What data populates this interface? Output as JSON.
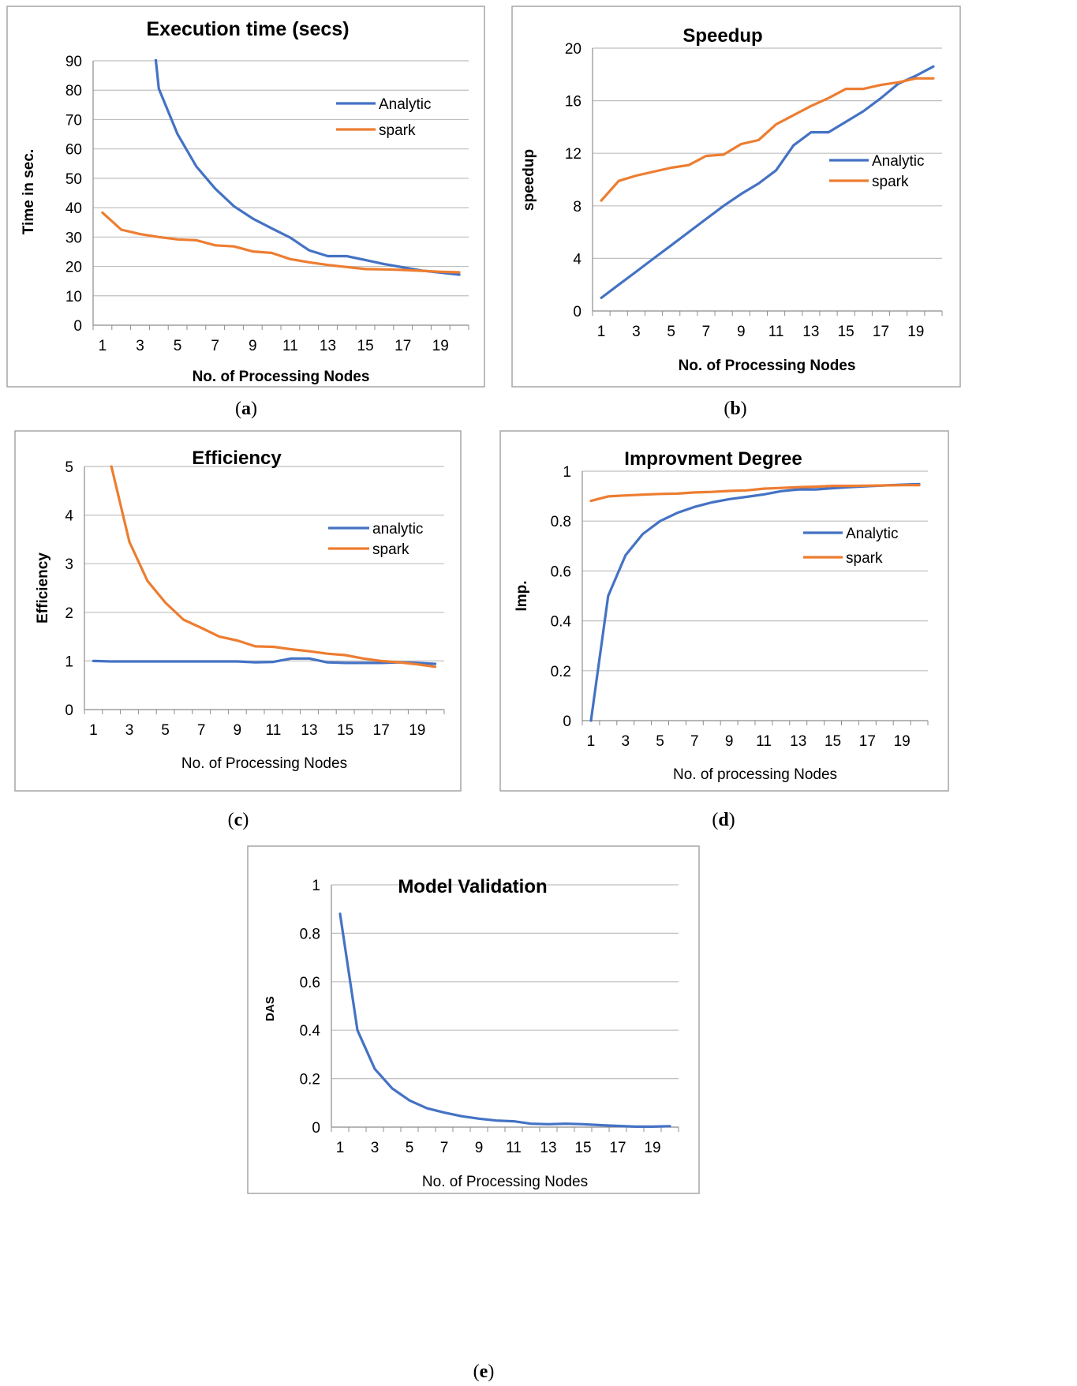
{
  "colors": {
    "analytic": "#4472C4",
    "spark": "#ED7D31",
    "grid": "#BFBFBF",
    "frame": "#A6A6A6"
  },
  "captions": [
    {
      "open": "(",
      "letter": "a",
      "close": ")"
    },
    {
      "open": "(",
      "letter": "b",
      "close": ")"
    },
    {
      "open": "(",
      "letter": "c",
      "close": ")"
    },
    {
      "open": "(",
      "letter": "d",
      "close": ")"
    },
    {
      "open": "(",
      "letter": "e",
      "close": ")"
    }
  ],
  "chart_data": [
    {
      "type": "line",
      "title": "Execution time (secs)",
      "xlabel": "No. of Processing Nodes",
      "ylabel": "Time in sec.",
      "ylim": [
        0,
        90
      ],
      "yticks": [
        "0",
        "10",
        "20",
        "30",
        "40",
        "50",
        "60",
        "70",
        "80",
        "90"
      ],
      "x": [
        1,
        2,
        3,
        4,
        5,
        6,
        7,
        8,
        9,
        10,
        11,
        12,
        13,
        14,
        15,
        16,
        17,
        18,
        19,
        20
      ],
      "xticks": [
        "1",
        "3",
        "5",
        "7",
        "9",
        "11",
        "13",
        "15",
        "17",
        "19"
      ],
      "legend": "right",
      "series": [
        {
          "name": "Analytic",
          "color": "analytic",
          "values": [
            null,
            null,
            null,
            80.5,
            65,
            54,
            46.5,
            40.5,
            36.3,
            33,
            29.8,
            25.5,
            23.5,
            23.5,
            22.2,
            20.8,
            19.7,
            18.6,
            17.9,
            17.2
          ]
        },
        {
          "name": "spark",
          "color": "spark",
          "values": [
            38.3,
            32.5,
            31,
            30,
            29.2,
            28.9,
            27.2,
            26.8,
            25.1,
            24.6,
            22.5,
            21.4,
            20.5,
            19.8,
            19.1,
            19,
            18.8,
            18.5,
            18.2,
            18
          ]
        }
      ]
    },
    {
      "type": "line",
      "title": "Speedup",
      "xlabel": "No. of Processing Nodes",
      "ylabel": "speedup",
      "ylim": [
        0,
        20
      ],
      "yticks": [
        "0",
        "4",
        "8",
        "12",
        "16",
        "20"
      ],
      "x": [
        1,
        2,
        3,
        4,
        5,
        6,
        7,
        8,
        9,
        10,
        11,
        12,
        13,
        14,
        15,
        16,
        17,
        18,
        19,
        20
      ],
      "xticks": [
        "1",
        "3",
        "5",
        "7",
        "9",
        "11",
        "13",
        "15",
        "17",
        "19"
      ],
      "legend": "right",
      "series": [
        {
          "name": "Analytic",
          "color": "analytic",
          "values": [
            1,
            2,
            3,
            4,
            5,
            6,
            7,
            8,
            8.9,
            9.7,
            10.7,
            12.6,
            13.6,
            13.6,
            14.4,
            15.2,
            16.2,
            17.3,
            17.9,
            18.6
          ]
        },
        {
          "name": "spark",
          "color": "spark",
          "values": [
            8.4,
            9.9,
            10.3,
            10.6,
            10.9,
            11.1,
            11.8,
            11.9,
            12.7,
            13,
            14.2,
            14.9,
            15.6,
            16.2,
            16.9,
            16.9,
            17.2,
            17.4,
            17.7,
            17.7
          ]
        }
      ]
    },
    {
      "type": "line",
      "title": "Efficiency",
      "xlabel": "No. of Processing Nodes",
      "ylabel": "Efficiency",
      "ylim": [
        0,
        5
      ],
      "yticks": [
        "0",
        "1",
        "2",
        "3",
        "4",
        "5"
      ],
      "x": [
        1,
        2,
        3,
        4,
        5,
        6,
        7,
        8,
        9,
        10,
        11,
        12,
        13,
        14,
        15,
        16,
        17,
        18,
        19,
        20
      ],
      "xticks": [
        "1",
        "3",
        "5",
        "7",
        "9",
        "11",
        "13",
        "15",
        "17",
        "19"
      ],
      "legend": "right",
      "series": [
        {
          "name": "analytic",
          "color": "analytic",
          "values": [
            1,
            0.99,
            0.99,
            0.99,
            0.99,
            0.99,
            0.99,
            0.99,
            0.99,
            0.97,
            0.98,
            1.05,
            1.05,
            0.97,
            0.96,
            0.96,
            0.96,
            0.97,
            0.96,
            0.94
          ]
        },
        {
          "name": "spark",
          "color": "spark",
          "values": [
            null,
            5,
            3.45,
            2.65,
            2.2,
            1.85,
            1.68,
            1.5,
            1.42,
            1.3,
            1.29,
            1.24,
            1.2,
            1.15,
            1.12,
            1.05,
            1,
            0.97,
            0.93,
            0.88
          ]
        }
      ]
    },
    {
      "type": "line",
      "title": "Improvment Degree",
      "xlabel": "No. of processing Nodes",
      "ylabel": "Imp.",
      "ylim": [
        0,
        1
      ],
      "yticks": [
        "0",
        "0.2",
        "0.4",
        "0.6",
        "0.8",
        "1"
      ],
      "x": [
        1,
        2,
        3,
        4,
        5,
        6,
        7,
        8,
        9,
        10,
        11,
        12,
        13,
        14,
        15,
        16,
        17,
        18,
        19,
        20
      ],
      "xticks": [
        "1",
        "3",
        "5",
        "7",
        "9",
        "11",
        "13",
        "15",
        "17",
        "19"
      ],
      "legend": "right",
      "series": [
        {
          "name": "Analytic",
          "color": "analytic",
          "values": [
            0,
            0.5,
            0.663,
            0.748,
            0.8,
            0.833,
            0.857,
            0.875,
            0.888,
            0.897,
            0.907,
            0.92,
            0.927,
            0.927,
            0.932,
            0.936,
            0.94,
            0.943,
            0.946,
            0.948
          ]
        },
        {
          "name": "spark",
          "color": "spark",
          "values": [
            0.881,
            0.899,
            0.903,
            0.906,
            0.909,
            0.91,
            0.915,
            0.917,
            0.921,
            0.923,
            0.93,
            0.933,
            0.936,
            0.938,
            0.941,
            0.941,
            0.942,
            0.943,
            0.944,
            0.944
          ]
        }
      ]
    },
    {
      "type": "line",
      "title": "Model Validation",
      "xlabel": "No. of Processing Nodes",
      "ylabel": "DAS",
      "ylim": [
        0,
        1
      ],
      "yticks": [
        "0",
        "0.2",
        "0.4",
        "0.6",
        "0.8",
        "1"
      ],
      "x": [
        1,
        2,
        3,
        4,
        5,
        6,
        7,
        8,
        9,
        10,
        11,
        12,
        13,
        14,
        15,
        16,
        17,
        18,
        19,
        20
      ],
      "xticks": [
        "1",
        "3",
        "5",
        "7",
        "9",
        "11",
        "13",
        "15",
        "17",
        "19"
      ],
      "legend": "none",
      "series": [
        {
          "color": "analytic",
          "values": [
            0.88,
            0.4,
            0.24,
            0.16,
            0.11,
            0.078,
            0.06,
            0.045,
            0.035,
            0.027,
            0.024,
            0.014,
            0.012,
            0.014,
            0.012,
            0.008,
            0.005,
            0.002,
            0.002,
            0.004
          ]
        }
      ]
    }
  ]
}
